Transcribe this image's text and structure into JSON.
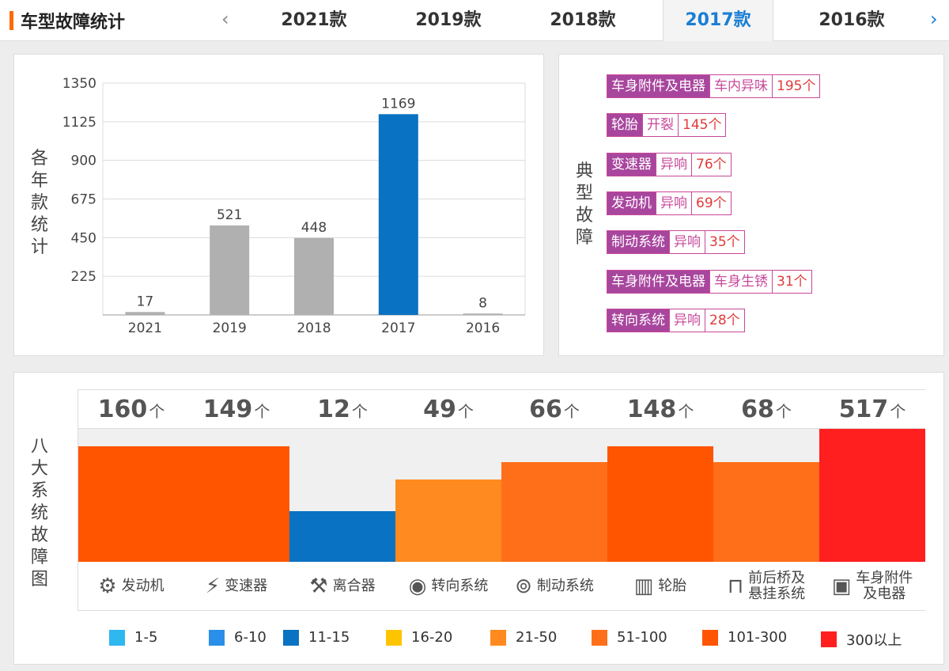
{
  "header": {
    "title": "车型故障统计",
    "prev_icon": "‹",
    "next_icon": "›",
    "tabs": [
      {
        "label": "2021款",
        "active": false
      },
      {
        "label": "2019款",
        "active": false
      },
      {
        "label": "2018款",
        "active": false
      },
      {
        "label": "2017款",
        "active": true
      },
      {
        "label": "2016款",
        "active": false
      }
    ]
  },
  "yearly_panel": {
    "vertical_title": [
      "各",
      "年",
      "款",
      "统",
      "计"
    ]
  },
  "chart_data": {
    "type": "bar",
    "categories": [
      "2021",
      "2019",
      "2018",
      "2017",
      "2016"
    ],
    "values": [
      17,
      521,
      448,
      1169,
      8
    ],
    "highlight_category": "2017",
    "colors": {
      "default": "#b0b0b0",
      "highlight": "#0a72c2"
    },
    "yticks": [
      225,
      450,
      675,
      900,
      1125,
      1350
    ],
    "ylim": [
      0,
      1350
    ],
    "grid": true
  },
  "typical_faults": {
    "vertical_title": [
      "典",
      "型",
      "故",
      "障"
    ],
    "items": [
      {
        "system": "车身附件及电器",
        "symptom": "车内异味",
        "count": "195个"
      },
      {
        "system": "轮胎",
        "symptom": "开裂",
        "count": "145个"
      },
      {
        "system": "变速器",
        "symptom": "异响",
        "count": "76个"
      },
      {
        "system": "发动机",
        "symptom": "异响",
        "count": "69个"
      },
      {
        "system": "制动系统",
        "symptom": "异响",
        "count": "35个"
      },
      {
        "system": "车身附件及电器",
        "symptom": "车身生锈",
        "count": "31个"
      },
      {
        "system": "转向系统",
        "symptom": "异响",
        "count": "28个"
      }
    ]
  },
  "systems_panel": {
    "vertical_title": [
      "八",
      "大",
      "系",
      "统",
      "故",
      "障",
      "图"
    ],
    "unit": "个",
    "systems": [
      {
        "count": "160",
        "label": [
          "发动机"
        ],
        "icon": "⚙",
        "icon_name": "engine-icon",
        "level": 0.87,
        "color": "#ff5500"
      },
      {
        "count": "149",
        "label": [
          "变速器"
        ],
        "icon": "⚡",
        "icon_name": "gear-shift-icon",
        "level": 0.87,
        "color": "#ff5500"
      },
      {
        "count": "12",
        "label": [
          "离合器"
        ],
        "icon": "⚒",
        "icon_name": "clutch-pedal-icon",
        "level": 0.38,
        "color": "#0a72c2"
      },
      {
        "count": "49",
        "label": [
          "转向系统"
        ],
        "icon": "◉",
        "icon_name": "steering-wheel-icon",
        "level": 0.62,
        "color": "#ff8a1f"
      },
      {
        "count": "66",
        "label": [
          "制动系统"
        ],
        "icon": "⊚",
        "icon_name": "brake-disc-icon",
        "level": 0.75,
        "color": "#ff6f1a"
      },
      {
        "count": "148",
        "label": [
          "轮胎"
        ],
        "icon": "▥",
        "icon_name": "tire-icon",
        "level": 0.87,
        "color": "#ff5500"
      },
      {
        "count": "68",
        "label": [
          "前后桥及",
          "悬挂系统"
        ],
        "icon": "⊓",
        "icon_name": "suspension-icon",
        "level": 0.75,
        "color": "#ff6f1a"
      },
      {
        "count": "517",
        "label": [
          "车身附件",
          "及电器"
        ],
        "icon": "▣",
        "icon_name": "battery-icon",
        "level": 1.0,
        "color": "#ff1f1f"
      }
    ]
  },
  "legend": [
    {
      "label": "1-5",
      "color": "#2fb7f0"
    },
    {
      "label": "6-10",
      "color": "#2a8fe8"
    },
    {
      "label": "11-15",
      "color": "#0a72c2"
    },
    {
      "label": "16-20",
      "color": "#ffc400"
    },
    {
      "label": "21-50",
      "color": "#ff8a1f"
    },
    {
      "label": "51-100",
      "color": "#ff6f1a"
    },
    {
      "label": "101-300",
      "color": "#ff5500"
    },
    {
      "label": "300以上",
      "color": "#ff1f1f"
    }
  ]
}
